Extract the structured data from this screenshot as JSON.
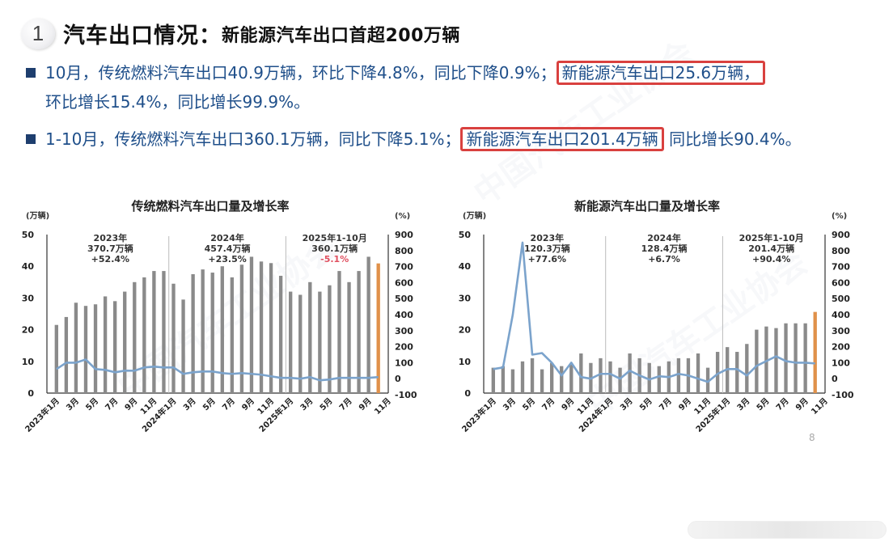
{
  "header": {
    "number": "1",
    "title": "汽车出口情况：",
    "subtitle": "新能源汽车出口首超200万辆"
  },
  "bullets": [
    {
      "pre": "10月，传统燃料汽车出口40.9万辆，环比下降4.8%，同比下降0.9%；",
      "highlight": "新能源汽车出口25.6万辆，",
      "post": "环比增长15.4%，同比增长99.9%。"
    },
    {
      "pre": "1-10月，传统燃料汽车出口360.1万辆，同比下降5.1%；",
      "highlight": "新能源汽车出口201.4万辆",
      "post": " 同比增长90.4%。"
    }
  ],
  "page_number": "8",
  "colors": {
    "bar": "#8a8a8a",
    "bar_highlight": "#e0914a",
    "line": "#7ba3cc",
    "highlight_box": "#d9413f",
    "text_blue": "#1f4f8a"
  },
  "chart_data": [
    {
      "type": "bar+line",
      "title": "传统燃料汽车出口量及增长率",
      "ylabel_left": "(万辆)",
      "ylabel_right": "(%)",
      "ylim_left": [
        0,
        50
      ],
      "yticks_left": [
        0,
        10,
        20,
        30,
        40,
        50
      ],
      "ylim_right": [
        -100,
        900
      ],
      "yticks_right": [
        -100,
        0,
        100,
        200,
        300,
        400,
        500,
        600,
        700,
        800,
        900
      ],
      "x_tick_labels": [
        "2023年1月",
        "3月",
        "5月",
        "7月",
        "9月",
        "11月",
        "2024年1月",
        "3月",
        "5月",
        "7月",
        "9月",
        "11月",
        "2025年1月",
        "3月",
        "5月",
        "7月",
        "9月",
        "11月"
      ],
      "categories": [
        "2023-01",
        "2023-02",
        "2023-03",
        "2023-04",
        "2023-05",
        "2023-06",
        "2023-07",
        "2023-08",
        "2023-09",
        "2023-10",
        "2023-11",
        "2023-12",
        "2024-01",
        "2024-02",
        "2024-03",
        "2024-04",
        "2024-05",
        "2024-06",
        "2024-07",
        "2024-08",
        "2024-09",
        "2024-10",
        "2024-11",
        "2024-12",
        "2025-01",
        "2025-02",
        "2025-03",
        "2025-04",
        "2025-05",
        "2025-06",
        "2025-07",
        "2025-08",
        "2025-09",
        "2025-10"
      ],
      "series": [
        {
          "name": "出口量(万辆)",
          "type": "bar",
          "axis": "left",
          "values": [
            21.5,
            24,
            28.5,
            27.5,
            28,
            30.5,
            29,
            32,
            35,
            36.5,
            38.5,
            38.5,
            34.5,
            29.5,
            37.5,
            39,
            38,
            40,
            36.5,
            40.5,
            43,
            41.5,
            41,
            37,
            32,
            31,
            35,
            32,
            34,
            38.5,
            35,
            38.5,
            43,
            40.9
          ]
        },
        {
          "name": "增长率(%)",
          "type": "line",
          "axis": "right",
          "values": [
            60,
            100,
            100,
            120,
            60,
            55,
            40,
            50,
            50,
            70,
            75,
            70,
            70,
            30,
            40,
            45,
            45,
            35,
            30,
            35,
            30,
            25,
            15,
            5,
            5,
            0,
            10,
            -10,
            -5,
            5,
            5,
            5,
            5,
            10
          ]
        }
      ],
      "annotations": [
        {
          "lines": [
            "2023年",
            "370.7万辆",
            "+52.4%"
          ]
        },
        {
          "lines": [
            "2024年",
            "457.4万辆",
            "+23.5%"
          ]
        },
        {
          "lines": [
            "2025年1-10月",
            "360.1万辆",
            "-5.1%"
          ]
        }
      ]
    },
    {
      "type": "bar+line",
      "title": "新能源汽车出口量及增长率",
      "ylabel_left": "(万辆)",
      "ylabel_right": "(%)",
      "ylim_left": [
        0,
        50
      ],
      "yticks_left": [
        0,
        10,
        20,
        30,
        40,
        50
      ],
      "ylim_right": [
        -100,
        900
      ],
      "yticks_right": [
        -100,
        0,
        100,
        200,
        300,
        400,
        500,
        600,
        700,
        800,
        900
      ],
      "x_tick_labels": [
        "2023年1月",
        "3月",
        "5月",
        "7月",
        "9月",
        "11月",
        "2024年1月",
        "3月",
        "5月",
        "7月",
        "9月",
        "11月",
        "2025年1月",
        "3月",
        "5月",
        "7月",
        "9月",
        "11月"
      ],
      "categories": [
        "2023-01",
        "2023-02",
        "2023-03",
        "2023-04",
        "2023-05",
        "2023-06",
        "2023-07",
        "2023-08",
        "2023-09",
        "2023-10",
        "2023-11",
        "2023-12",
        "2024-01",
        "2024-02",
        "2024-03",
        "2024-04",
        "2024-05",
        "2024-06",
        "2024-07",
        "2024-08",
        "2024-09",
        "2024-10",
        "2024-11",
        "2024-12",
        "2025-01",
        "2025-02",
        "2025-03",
        "2025-04",
        "2025-05",
        "2025-06",
        "2025-07",
        "2025-08",
        "2025-09",
        "2025-10"
      ],
      "series": [
        {
          "name": "出口量(万辆)",
          "type": "bar",
          "axis": "left",
          "values": [
            8,
            8.5,
            7.5,
            10,
            11,
            7.5,
            9.5,
            8.5,
            9,
            12.5,
            9.5,
            11,
            10,
            8,
            12.5,
            11,
            9.5,
            8.5,
            10,
            11,
            11,
            12.5,
            8,
            13,
            14.5,
            13,
            15.5,
            20,
            21,
            20.5,
            22,
            22,
            22,
            25.6
          ]
        },
        {
          "name": "增长率(%)",
          "type": "line",
          "axis": "right",
          "values": [
            60,
            70,
            400,
            850,
            150,
            160,
            100,
            20,
            100,
            10,
            0,
            30,
            30,
            0,
            50,
            20,
            -5,
            15,
            10,
            30,
            20,
            0,
            -20,
            30,
            60,
            60,
            20,
            80,
            110,
            140,
            110,
            100,
            100,
            95
          ]
        }
      ],
      "annotations": [
        {
          "lines": [
            "2023年",
            "120.3万辆",
            "+77.6%"
          ]
        },
        {
          "lines": [
            "2024年",
            "128.4万辆",
            "+6.7%"
          ]
        },
        {
          "lines": [
            "2025年1-10月",
            "201.4万辆",
            "+90.4%"
          ]
        }
      ]
    }
  ]
}
